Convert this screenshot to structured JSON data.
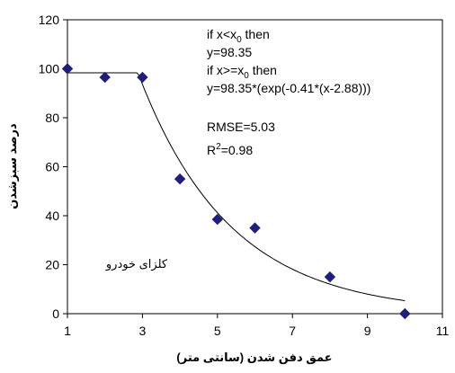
{
  "chart_data": {
    "type": "scatter",
    "xlabel": "عمق دفن شدن (سانتی متر)",
    "ylabel": "درصد سبزشدن",
    "xlim": [
      1,
      11
    ],
    "ylim": [
      0,
      120
    ],
    "xticks": [
      "1",
      "3",
      "5",
      "7",
      "9",
      "11"
    ],
    "yticks": [
      "0",
      "20",
      "40",
      "60",
      "80",
      "100",
      "120"
    ],
    "grid": false,
    "series": [
      {
        "kind": "points",
        "marker": "diamond",
        "color": "#1f1f7a",
        "x": [
          1,
          2,
          3,
          4,
          5,
          6,
          8,
          10
        ],
        "y": [
          100,
          96.5,
          96.5,
          55,
          38.5,
          35,
          15,
          0
        ]
      },
      {
        "kind": "fitted_curve",
        "color": "#000000",
        "x0": 2.88,
        "plateau": 98.35,
        "rate": 0.41,
        "x_range": [
          1,
          10
        ]
      }
    ],
    "annotations": {
      "line1_a": "if x<x",
      "line1_sub": "0",
      "line1_b": " then",
      "line2": "y=98.35",
      "line3_a": "if x>=x",
      "line3_sub": "0",
      "line3_b": " then",
      "line4": "y=98.35*(exp(-0.41*(x-2.88)))",
      "rmse": "RMSE=5.03",
      "r2_a": "R",
      "r2_sup": "2",
      "r2_b": "=0.98",
      "species_label": "کلزای خودرو"
    }
  }
}
